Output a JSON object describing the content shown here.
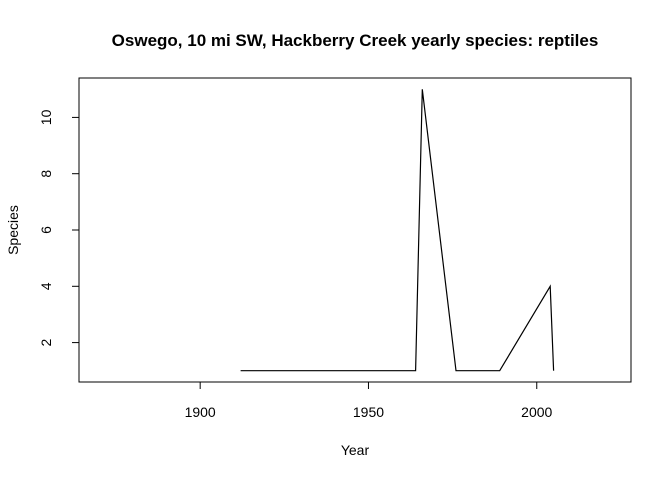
{
  "chart_data": {
    "type": "line",
    "title": "Oswego, 10 mi SW, Hackberry Creek yearly species: reptiles",
    "xlabel": "Year",
    "ylabel": "Species",
    "xlim": [
      1864,
      2028
    ],
    "ylim": [
      0.6,
      11.4
    ],
    "x_ticks": [
      1900,
      1950,
      2000
    ],
    "y_ticks": [
      2,
      4,
      6,
      8,
      10
    ],
    "grid": false,
    "legend": "none",
    "series": [
      {
        "x": [
          1912,
          1964,
          1966,
          1976,
          1989,
          2004,
          2005
        ],
        "values": [
          1,
          1,
          11,
          1,
          1,
          4,
          1
        ]
      }
    ],
    "colors": {
      "line": "#000000",
      "axis": "#000000",
      "background": "#ffffff"
    }
  }
}
